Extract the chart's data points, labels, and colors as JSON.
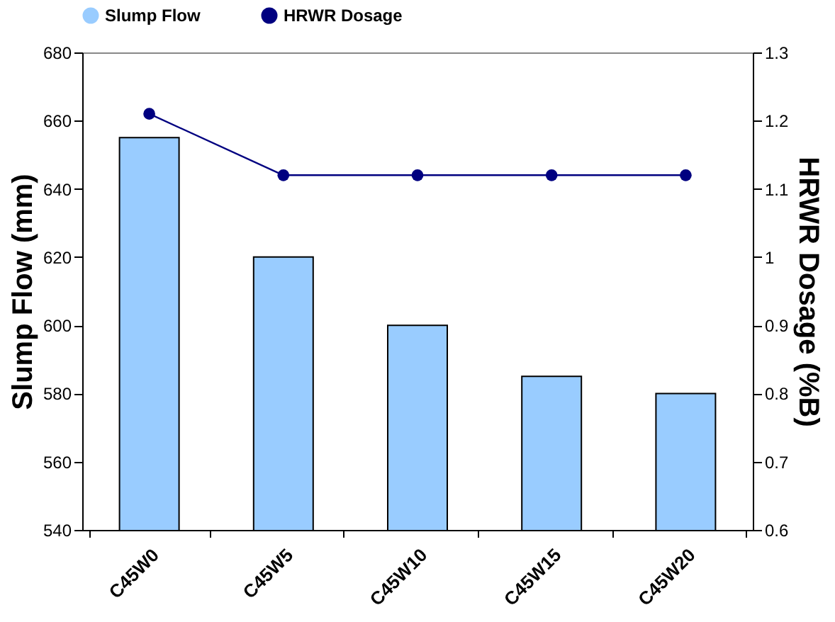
{
  "chart_data": {
    "type": "bar",
    "categories": [
      "C45W0",
      "C45W5",
      "C45W10",
      "C45W15",
      "C45W20"
    ],
    "series": [
      {
        "name": "Slump Flow",
        "color": "#99ccff",
        "values": [
          655,
          620,
          600,
          585,
          580
        ]
      },
      {
        "name": "HRWR Dosage",
        "type": "line",
        "axis": "y2",
        "color": "#000080",
        "values": [
          1.21,
          1.12,
          1.12,
          1.12,
          1.12
        ]
      }
    ],
    "ylabel": "Slump Flow (mm)",
    "y2label": "HRWR Dosage (%B)",
    "ylim": [
      540,
      680
    ],
    "yticks": [
      540,
      560,
      580,
      600,
      620,
      640,
      660,
      680
    ],
    "y2lim": [
      0.6,
      1.3
    ],
    "y2ticks": [
      0.6,
      0.7,
      0.8,
      0.9,
      1,
      1.1,
      1.2,
      1.3
    ],
    "marker": "circle",
    "line_style": "solid",
    "grid": false,
    "legend": "top"
  }
}
